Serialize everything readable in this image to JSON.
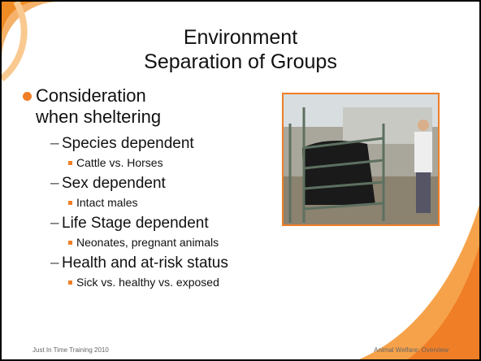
{
  "slide": {
    "title": [
      "Environment",
      "Separation of Groups"
    ],
    "bullet": {
      "lines": [
        "Consideration",
        "when sheltering"
      ],
      "items": [
        {
          "text": "Species dependent",
          "sub": "Cattle vs. Horses"
        },
        {
          "text": "Sex dependent",
          "sub": "Intact males"
        },
        {
          "text": "Life Stage dependent",
          "sub": "Neonates, pregnant animals"
        },
        {
          "text": "Health and at-risk status",
          "sub": "Sick vs. healthy vs. exposed"
        }
      ]
    },
    "footer": {
      "left": "Just In Time Training 2010",
      "right": "Animal Welfare: Overview"
    }
  }
}
